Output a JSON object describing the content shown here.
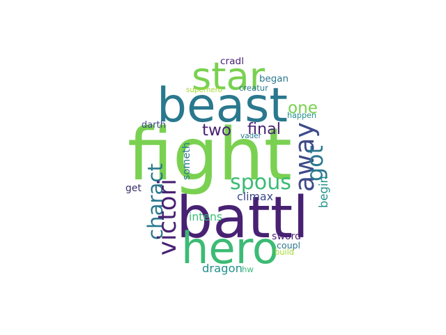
{
  "palette": {
    "deep_purple": "#482173",
    "dark_purple": "#3b2f6b",
    "indigo": "#3e4a89",
    "teal_blue": "#2a788e",
    "teal": "#21918c",
    "green": "#3cbb75",
    "lime": "#7ad151",
    "light_lime": "#a5db36"
  },
  "words": [
    {
      "text": "fight",
      "color": "#7ad151",
      "rotated": false
    },
    {
      "text": "battl",
      "color": "#482173",
      "rotated": false
    },
    {
      "text": "beast",
      "color": "#2a788e",
      "rotated": false
    },
    {
      "text": "hero",
      "color": "#3cbb75",
      "rotated": false
    },
    {
      "text": "star",
      "color": "#7ad151",
      "rotated": false
    },
    {
      "text": "away",
      "color": "#3e4a89",
      "rotated": true
    },
    {
      "text": "spous",
      "color": "#3cbb75",
      "rotated": false
    },
    {
      "text": "charact",
      "color": "#2a788e",
      "rotated": true
    },
    {
      "text": "victori",
      "color": "#482173",
      "rotated": true
    },
    {
      "text": "one",
      "color": "#7ad151",
      "rotated": false
    },
    {
      "text": "two",
      "color": "#482173",
      "rotated": false
    },
    {
      "text": "got",
      "color": "#2a788e",
      "rotated": true
    },
    {
      "text": "final",
      "color": "#482173",
      "rotated": false
    },
    {
      "text": "climax",
      "color": "#3e4a89",
      "rotated": false
    },
    {
      "text": "intens",
      "color": "#3cbb75",
      "rotated": false
    },
    {
      "text": "dragon",
      "color": "#21918c",
      "rotated": false
    },
    {
      "text": "sword",
      "color": "#482173",
      "rotated": false
    },
    {
      "text": "get",
      "color": "#3b2f6b",
      "rotated": false
    },
    {
      "text": "someth",
      "color": "#2a788e",
      "rotated": true
    },
    {
      "text": "begin",
      "color": "#21918c",
      "rotated": true
    },
    {
      "text": "began",
      "color": "#2a788e",
      "rotated": false
    },
    {
      "text": "coupl",
      "color": "#2a788e",
      "rotated": false
    },
    {
      "text": "happen",
      "color": "#21918c",
      "rotated": false
    },
    {
      "text": "darth",
      "color": "#3e4a89",
      "rotated": false
    },
    {
      "text": "cradl",
      "color": "#482173",
      "rotated": false
    },
    {
      "text": "creatur",
      "color": "#2a788e",
      "rotated": false
    },
    {
      "text": "superhero",
      "color": "#a5db36",
      "rotated": false
    },
    {
      "text": "vader",
      "color": "#2a788e",
      "rotated": false
    },
    {
      "text": "build",
      "color": "#a5db36",
      "rotated": false
    },
    {
      "text": "hw",
      "color": "#3cbb75",
      "rotated": false
    }
  ]
}
